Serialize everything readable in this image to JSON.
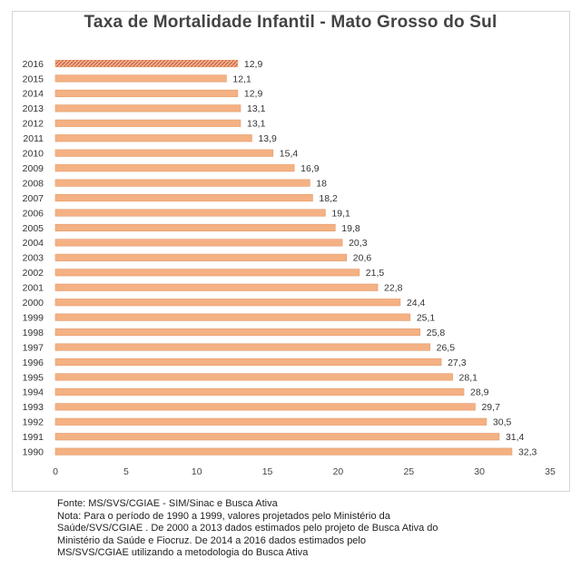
{
  "chart_data": {
    "type": "bar",
    "orientation": "horizontal",
    "title": "Taxa de Mortalidade Infantil - Mato Grosso do Sul",
    "categories": [
      "2016",
      "2015",
      "2014",
      "2013",
      "2012",
      "2011",
      "2010",
      "2009",
      "2008",
      "2007",
      "2006",
      "2005",
      "2004",
      "2003",
      "2002",
      "2001",
      "2000",
      "1999",
      "1998",
      "1997",
      "1996",
      "1995",
      "1994",
      "1993",
      "1992",
      "1991",
      "1990"
    ],
    "values": [
      12.9,
      12.1,
      12.9,
      13.1,
      13.1,
      13.9,
      15.4,
      16.9,
      18,
      18.2,
      19.1,
      19.8,
      20.3,
      20.6,
      21.5,
      22.8,
      24.4,
      25.1,
      25.8,
      26.5,
      27.3,
      28.1,
      28.9,
      29.7,
      30.5,
      31.4,
      32.3
    ],
    "value_labels": [
      "12,9",
      "12,1",
      "12,9",
      "13,1",
      "13,1",
      "13,9",
      "15,4",
      "16,9",
      "18",
      "18,2",
      "19,1",
      "19,8",
      "20,3",
      "20,6",
      "21,5",
      "22,8",
      "24,4",
      "25,1",
      "25,8",
      "26,5",
      "27,3",
      "28,1",
      "28,9",
      "29,7",
      "30,5",
      "31,4",
      "32,3"
    ],
    "xlim": [
      0,
      35
    ],
    "xticks": [
      0,
      5,
      10,
      15,
      20,
      25,
      30,
      35
    ],
    "grid": false,
    "colors": {
      "bar": "#F4B183",
      "bar_edge": "#E39A6A",
      "highlight_pattern": "#C0504D"
    },
    "highlighted_category": "2016"
  },
  "notes": {
    "lines": [
      "Fonte: MS/SVS/CGIAE - SIM/Sinac e Busca Ativa",
      "Nota: Para o período de 1990 a 1999, valores projetados pelo Ministério da",
      "Saúde/SVS/CGIAE . De 2000 a 2013 dados estimados pelo projeto de Busca Ativa do",
      "Ministério da Saúde e Fiocruz. De 2014 a 2016 dados estimados pelo",
      "MS/SVS/CGIAE utilizando a metodologia do Busca Ativa"
    ]
  }
}
